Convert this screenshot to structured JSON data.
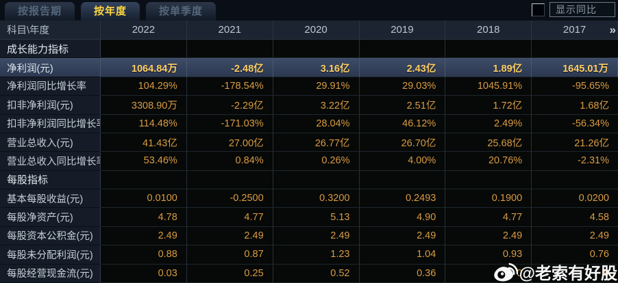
{
  "tabs": [
    {
      "label": "按报告期",
      "active": false
    },
    {
      "label": "按年度",
      "active": true
    },
    {
      "label": "按单季度",
      "active": false
    }
  ],
  "controls": {
    "compare_label": "显示同比",
    "checkbox_checked": false
  },
  "table": {
    "corner_header": "科目\\年度",
    "years": [
      "2022",
      "2021",
      "2020",
      "2019",
      "2018",
      "2017"
    ],
    "more_icon": "»",
    "rows": [
      {
        "type": "section",
        "label": "成长能力指标",
        "values": [
          "",
          "",
          "",
          "",
          "",
          ""
        ]
      },
      {
        "type": "highlight",
        "label": "净利润(元)",
        "values": [
          "1064.84万",
          "-2.48亿",
          "3.16亿",
          "2.43亿",
          "1.89亿",
          "1645.01万"
        ]
      },
      {
        "type": "data",
        "label": "净利润同比增长率",
        "values": [
          "104.29%",
          "-178.54%",
          "29.91%",
          "29.03%",
          "1045.91%",
          "-95.65%"
        ]
      },
      {
        "type": "data",
        "label": "扣非净利润(元)",
        "values": [
          "3308.90万",
          "-2.29亿",
          "3.22亿",
          "2.51亿",
          "1.72亿",
          "1.68亿"
        ]
      },
      {
        "type": "data",
        "label": "扣非净利润同比增长率",
        "values": [
          "114.48%",
          "-171.03%",
          "28.04%",
          "46.12%",
          "2.49%",
          "-56.34%"
        ]
      },
      {
        "type": "data",
        "label": "营业总收入(元)",
        "values": [
          "41.43亿",
          "27.00亿",
          "26.77亿",
          "26.70亿",
          "25.68亿",
          "21.26亿"
        ]
      },
      {
        "type": "data",
        "label": "营业总收入同比增长率",
        "values": [
          "53.46%",
          "0.84%",
          "0.26%",
          "4.00%",
          "20.76%",
          "-2.31%"
        ]
      },
      {
        "type": "section",
        "label": "每股指标",
        "values": [
          "",
          "",
          "",
          "",
          "",
          ""
        ]
      },
      {
        "type": "data",
        "label": "基本每股收益(元)",
        "values": [
          "0.0100",
          "-0.2500",
          "0.3200",
          "0.2493",
          "0.1900",
          "0.0200"
        ]
      },
      {
        "type": "data",
        "label": "每股净资产(元)",
        "values": [
          "4.78",
          "4.77",
          "5.13",
          "4.90",
          "4.77",
          "4.58"
        ]
      },
      {
        "type": "data",
        "label": "每股资本公积金(元)",
        "values": [
          "2.49",
          "2.49",
          "2.49",
          "2.49",
          "2.49",
          "2.49"
        ]
      },
      {
        "type": "data",
        "label": "每股未分配利润(元)",
        "values": [
          "0.88",
          "0.87",
          "1.23",
          "1.04",
          "0.93",
          "0.76"
        ]
      },
      {
        "type": "data",
        "label": "每股经营现金流(元)",
        "values": [
          "0.03",
          "0.25",
          "0.52",
          "0.36",
          "0",
          "9"
        ]
      }
    ]
  },
  "watermark": {
    "handle": "@老索有好股"
  },
  "colors": {
    "accent_gold": "#ffd640",
    "value_orange": "#db9b43",
    "highlight_value": "#ffcf66",
    "highlight_bg": "#32405a",
    "label_bg": "#151c27",
    "header_bg": "#1b2430",
    "data_bg": "#060907"
  }
}
